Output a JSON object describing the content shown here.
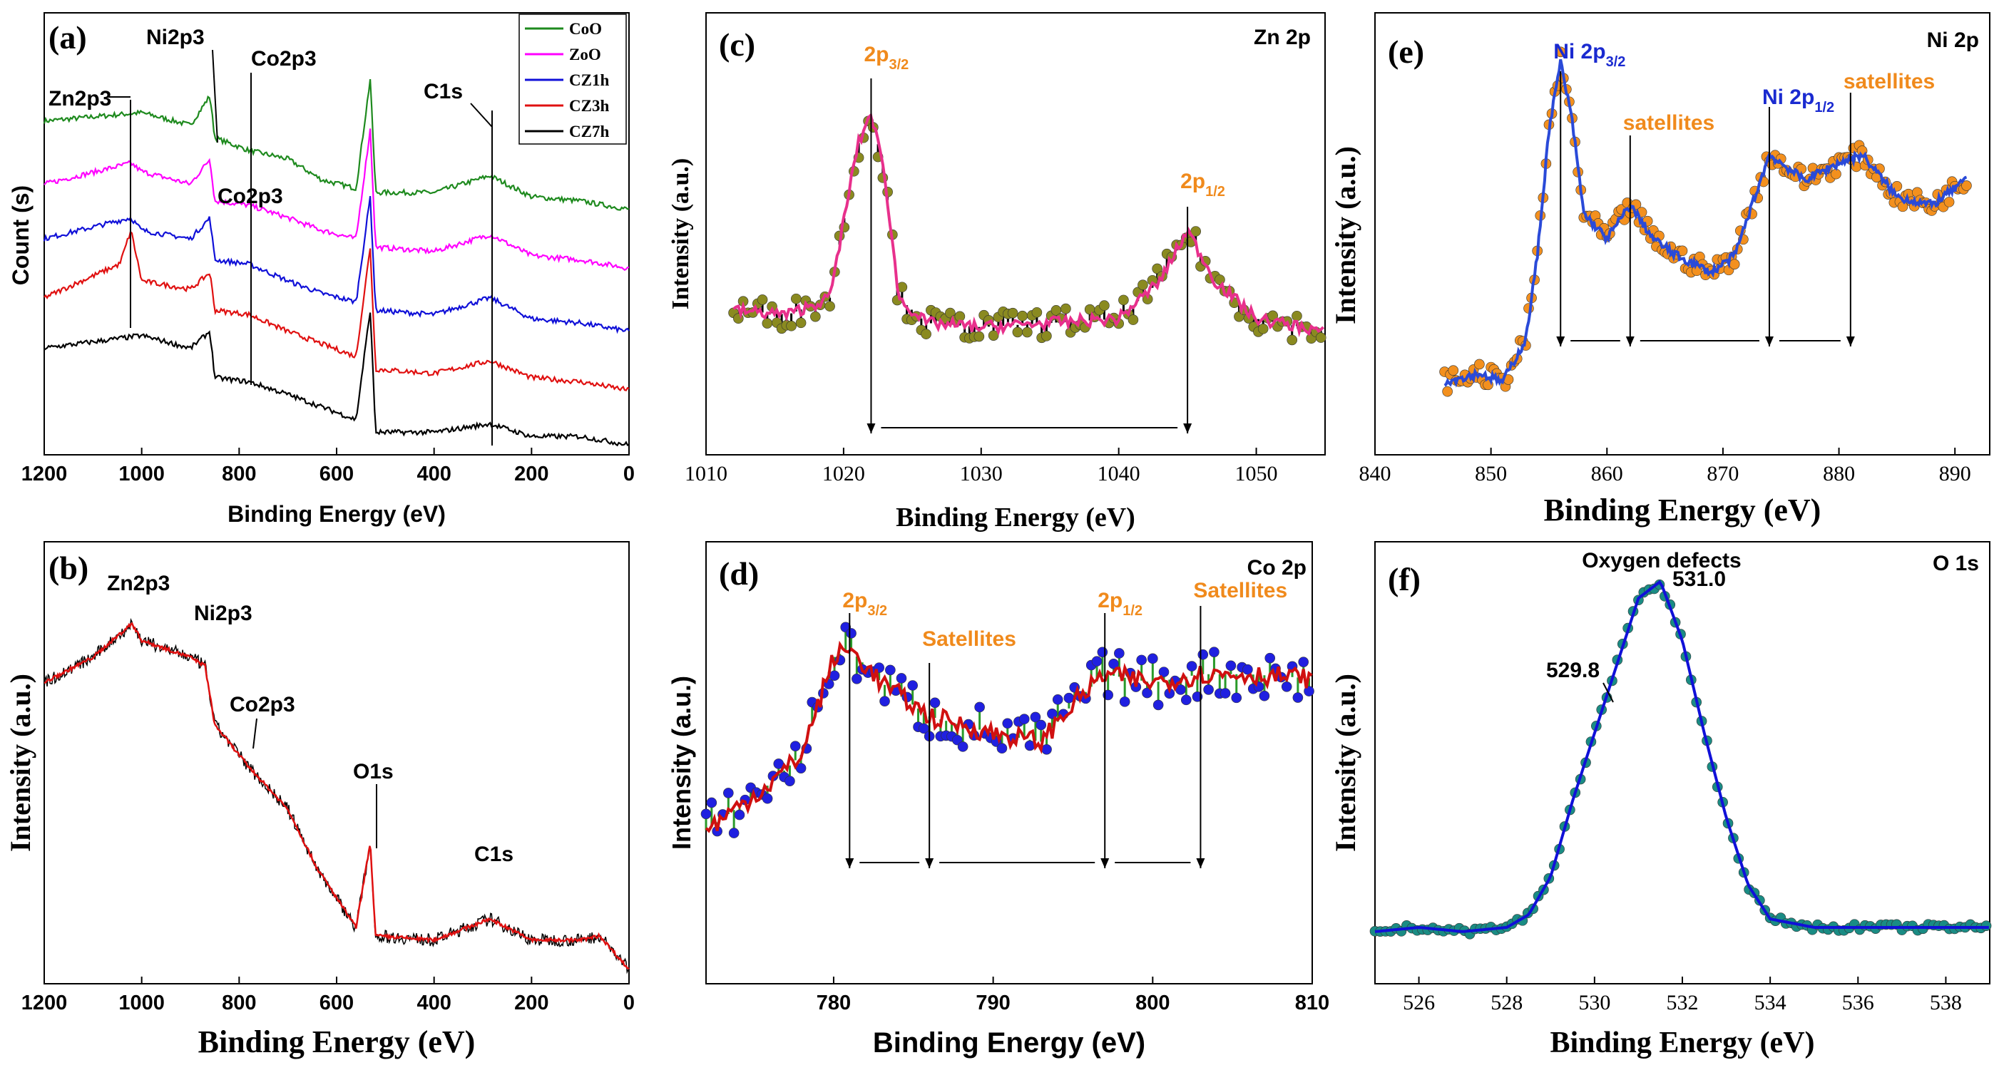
{
  "colors": {
    "green": "#1e8a1e",
    "magenta": "#ff00ff",
    "blue": "#1010d8",
    "red": "#e01010",
    "black": "#000000",
    "orange": "#f08a1c",
    "olive": "#8a8a20",
    "pinkline": "#e8308c",
    "blueball": "#2020e0",
    "fitred": "#d01010",
    "orangeball": "#f3901e",
    "fitblue": "#2a4ad8",
    "teal": "#1a8c84"
  },
  "chart_data": [
    {
      "id": "a",
      "type": "line",
      "panel_label": "(a)",
      "xlabel": "Binding Energy (eV)",
      "ylabel": "Count (s)",
      "xlim": [
        1200,
        0
      ],
      "xticks": [
        "1200",
        "1000",
        "800",
        "600",
        "400",
        "200",
        "0"
      ],
      "legend_position": "top-right",
      "series": [
        {
          "name": "CoO",
          "x": [
            1200,
            1000,
            900,
            860,
            850,
            780,
            700,
            630,
            560,
            531,
            520,
            400,
            285,
            200,
            100,
            0
          ],
          "y": [
            0.78,
            0.8,
            0.77,
            0.84,
            0.74,
            0.71,
            0.69,
            0.64,
            0.62,
            0.88,
            0.61,
            0.61,
            0.65,
            0.6,
            0.59,
            0.57
          ]
        },
        {
          "name": "ZoO",
          "x": [
            1200,
            1022,
            1000,
            900,
            860,
            850,
            780,
            700,
            630,
            560,
            531,
            520,
            400,
            285,
            200,
            100,
            0
          ],
          "y": [
            0.63,
            0.68,
            0.66,
            0.63,
            0.69,
            0.59,
            0.58,
            0.55,
            0.52,
            0.5,
            0.76,
            0.48,
            0.47,
            0.51,
            0.46,
            0.45,
            0.43
          ]
        },
        {
          "name": "CZ1h",
          "x": [
            1200,
            1022,
            1000,
            900,
            860,
            850,
            780,
            700,
            630,
            560,
            531,
            520,
            400,
            285,
            200,
            100,
            0
          ],
          "y": [
            0.5,
            0.55,
            0.52,
            0.5,
            0.55,
            0.45,
            0.44,
            0.4,
            0.37,
            0.35,
            0.6,
            0.33,
            0.32,
            0.36,
            0.31,
            0.3,
            0.28
          ]
        },
        {
          "name": "CZ3h",
          "x": [
            1200,
            1045,
            1022,
            1000,
            900,
            860,
            850,
            780,
            700,
            630,
            560,
            531,
            520,
            400,
            285,
            200,
            100,
            0
          ],
          "y": [
            0.36,
            0.44,
            0.52,
            0.4,
            0.38,
            0.42,
            0.33,
            0.32,
            0.28,
            0.25,
            0.22,
            0.48,
            0.19,
            0.18,
            0.21,
            0.17,
            0.16,
            0.14
          ]
        },
        {
          "name": "CZ7h",
          "x": [
            1200,
            1000,
            900,
            860,
            850,
            780,
            700,
            630,
            560,
            531,
            520,
            400,
            285,
            200,
            100,
            0
          ],
          "y": [
            0.24,
            0.27,
            0.24,
            0.28,
            0.17,
            0.16,
            0.13,
            0.1,
            0.07,
            0.33,
            0.04,
            0.04,
            0.06,
            0.03,
            0.03,
            0.01
          ]
        }
      ],
      "annotations": [
        "Zn2p3",
        "Ni2p3",
        "Co2p3",
        "Co2p3",
        "C1s"
      ]
    },
    {
      "id": "b",
      "type": "line",
      "panel_label": "(b)",
      "xlabel": "Binding Energy (eV)",
      "ylabel": "Intensity (a.u.)",
      "xlim": [
        1200,
        0
      ],
      "xticks": [
        "1200",
        "1000",
        "800",
        "600",
        "400",
        "200",
        "0"
      ],
      "series": [
        {
          "name": "spectrum",
          "x": [
            1200,
            1100,
            1020,
            1000,
            900,
            870,
            850,
            780,
            700,
            640,
            560,
            531,
            520,
            400,
            285,
            200,
            100,
            60,
            0
          ],
          "y": [
            0.7,
            0.76,
            0.84,
            0.8,
            0.76,
            0.74,
            0.6,
            0.5,
            0.4,
            0.26,
            0.12,
            0.32,
            0.1,
            0.09,
            0.14,
            0.09,
            0.09,
            0.1,
            0.02
          ]
        }
      ],
      "annotations": [
        "Zn2p3",
        "Ni2p3",
        "Co2p3",
        "O1s",
        "C1s"
      ]
    },
    {
      "id": "c",
      "type": "scatter",
      "panel_label": "(c)",
      "corner_label": "Zn 2p",
      "xlabel": "Binding Energy (eV)",
      "ylabel": "Intensity (a.u.)",
      "xlim": [
        1010,
        1055
      ],
      "xticks": [
        "1010",
        "1020",
        "1030",
        "1040",
        "1050"
      ],
      "series": [
        {
          "name": "fit",
          "x": [
            1012,
            1016,
            1019,
            1021,
            1022,
            1023,
            1024,
            1026,
            1030,
            1035,
            1040,
            1043,
            1045,
            1047,
            1050,
            1055
          ],
          "y": [
            0.33,
            0.32,
            0.36,
            0.72,
            0.8,
            0.65,
            0.36,
            0.3,
            0.29,
            0.3,
            0.31,
            0.4,
            0.52,
            0.4,
            0.31,
            0.28
          ]
        }
      ],
      "peaks": [
        {
          "label": "2p",
          "sub": "3/2",
          "x": 1022.0
        },
        {
          "label": "2p",
          "sub": "1/2",
          "x": 1045.0
        }
      ]
    },
    {
      "id": "d",
      "type": "scatter",
      "panel_label": "(d)",
      "corner_label": "Co 2p",
      "xlabel": "Binding Energy (eV)",
      "ylabel": "Intensity (a.u.)",
      "xlim": [
        772,
        810
      ],
      "xticks": [
        "780",
        "790",
        "800",
        "810"
      ],
      "series": [
        {
          "name": "fit",
          "x": [
            772,
            776,
            778,
            780,
            781,
            783,
            786,
            790,
            793,
            795,
            797,
            800,
            803,
            806,
            810
          ],
          "y": [
            0.35,
            0.46,
            0.53,
            0.76,
            0.78,
            0.7,
            0.62,
            0.58,
            0.56,
            0.65,
            0.72,
            0.7,
            0.72,
            0.72,
            0.71
          ]
        }
      ],
      "peaks": [
        {
          "label": "2p",
          "sub": "3/2",
          "x": 781.0
        },
        {
          "label": "Satellites",
          "sub": "",
          "x": 786.0
        },
        {
          "label": "2p",
          "sub": "1/2",
          "x": 797.0
        },
        {
          "label": "Satellites",
          "sub": "",
          "x": 803.0
        }
      ]
    },
    {
      "id": "e",
      "type": "scatter",
      "panel_label": "(e)",
      "corner_label": "Ni 2p",
      "xlabel": "Binding Energy (eV)",
      "ylabel": "Intensity (a.u.)",
      "xlim": [
        840,
        893
      ],
      "xticks": [
        "840",
        "850",
        "860",
        "870",
        "880",
        "890"
      ],
      "series": [
        {
          "name": "fit",
          "x": [
            846,
            849,
            851,
            853,
            854,
            855,
            856,
            857,
            858,
            860,
            862,
            864,
            866,
            869,
            871,
            873,
            874,
            877,
            880,
            882,
            885,
            888,
            891
          ],
          "y": [
            0.16,
            0.18,
            0.16,
            0.26,
            0.46,
            0.76,
            0.92,
            0.78,
            0.56,
            0.5,
            0.58,
            0.5,
            0.46,
            0.42,
            0.46,
            0.62,
            0.7,
            0.64,
            0.68,
            0.7,
            0.6,
            0.58,
            0.64
          ]
        }
      ],
      "peaks": [
        {
          "label": "Ni 2p",
          "sub": "3/2",
          "x": 856.0
        },
        {
          "label": "satellites",
          "sub": "",
          "x": 862.0
        },
        {
          "label": "Ni 2p",
          "sub": "1/2",
          "x": 874.0
        },
        {
          "label": "satellites",
          "sub": "",
          "x": 881.0
        }
      ]
    },
    {
      "id": "f",
      "type": "scatter",
      "panel_label": "(f)",
      "corner_label": "O 1s",
      "xlabel": "Binding Energy (eV)",
      "ylabel": "Intensity (a.u.)",
      "xlim": [
        525,
        539
      ],
      "xticks": [
        "526",
        "528",
        "530",
        "532",
        "534",
        "536",
        "538"
      ],
      "series": [
        {
          "name": "fit",
          "x": [
            525,
            526,
            527,
            528,
            528.5,
            529,
            529.5,
            530,
            530.5,
            531,
            531.5,
            532,
            532.5,
            533,
            533.5,
            534,
            535,
            536,
            537,
            539
          ],
          "y": [
            0.11,
            0.12,
            0.11,
            0.12,
            0.15,
            0.24,
            0.42,
            0.58,
            0.74,
            0.9,
            0.94,
            0.8,
            0.58,
            0.38,
            0.22,
            0.14,
            0.12,
            0.12,
            0.12,
            0.12
          ]
        }
      ],
      "annotations": [
        "Oxygen defects",
        "531.0",
        "529.8"
      ]
    }
  ]
}
